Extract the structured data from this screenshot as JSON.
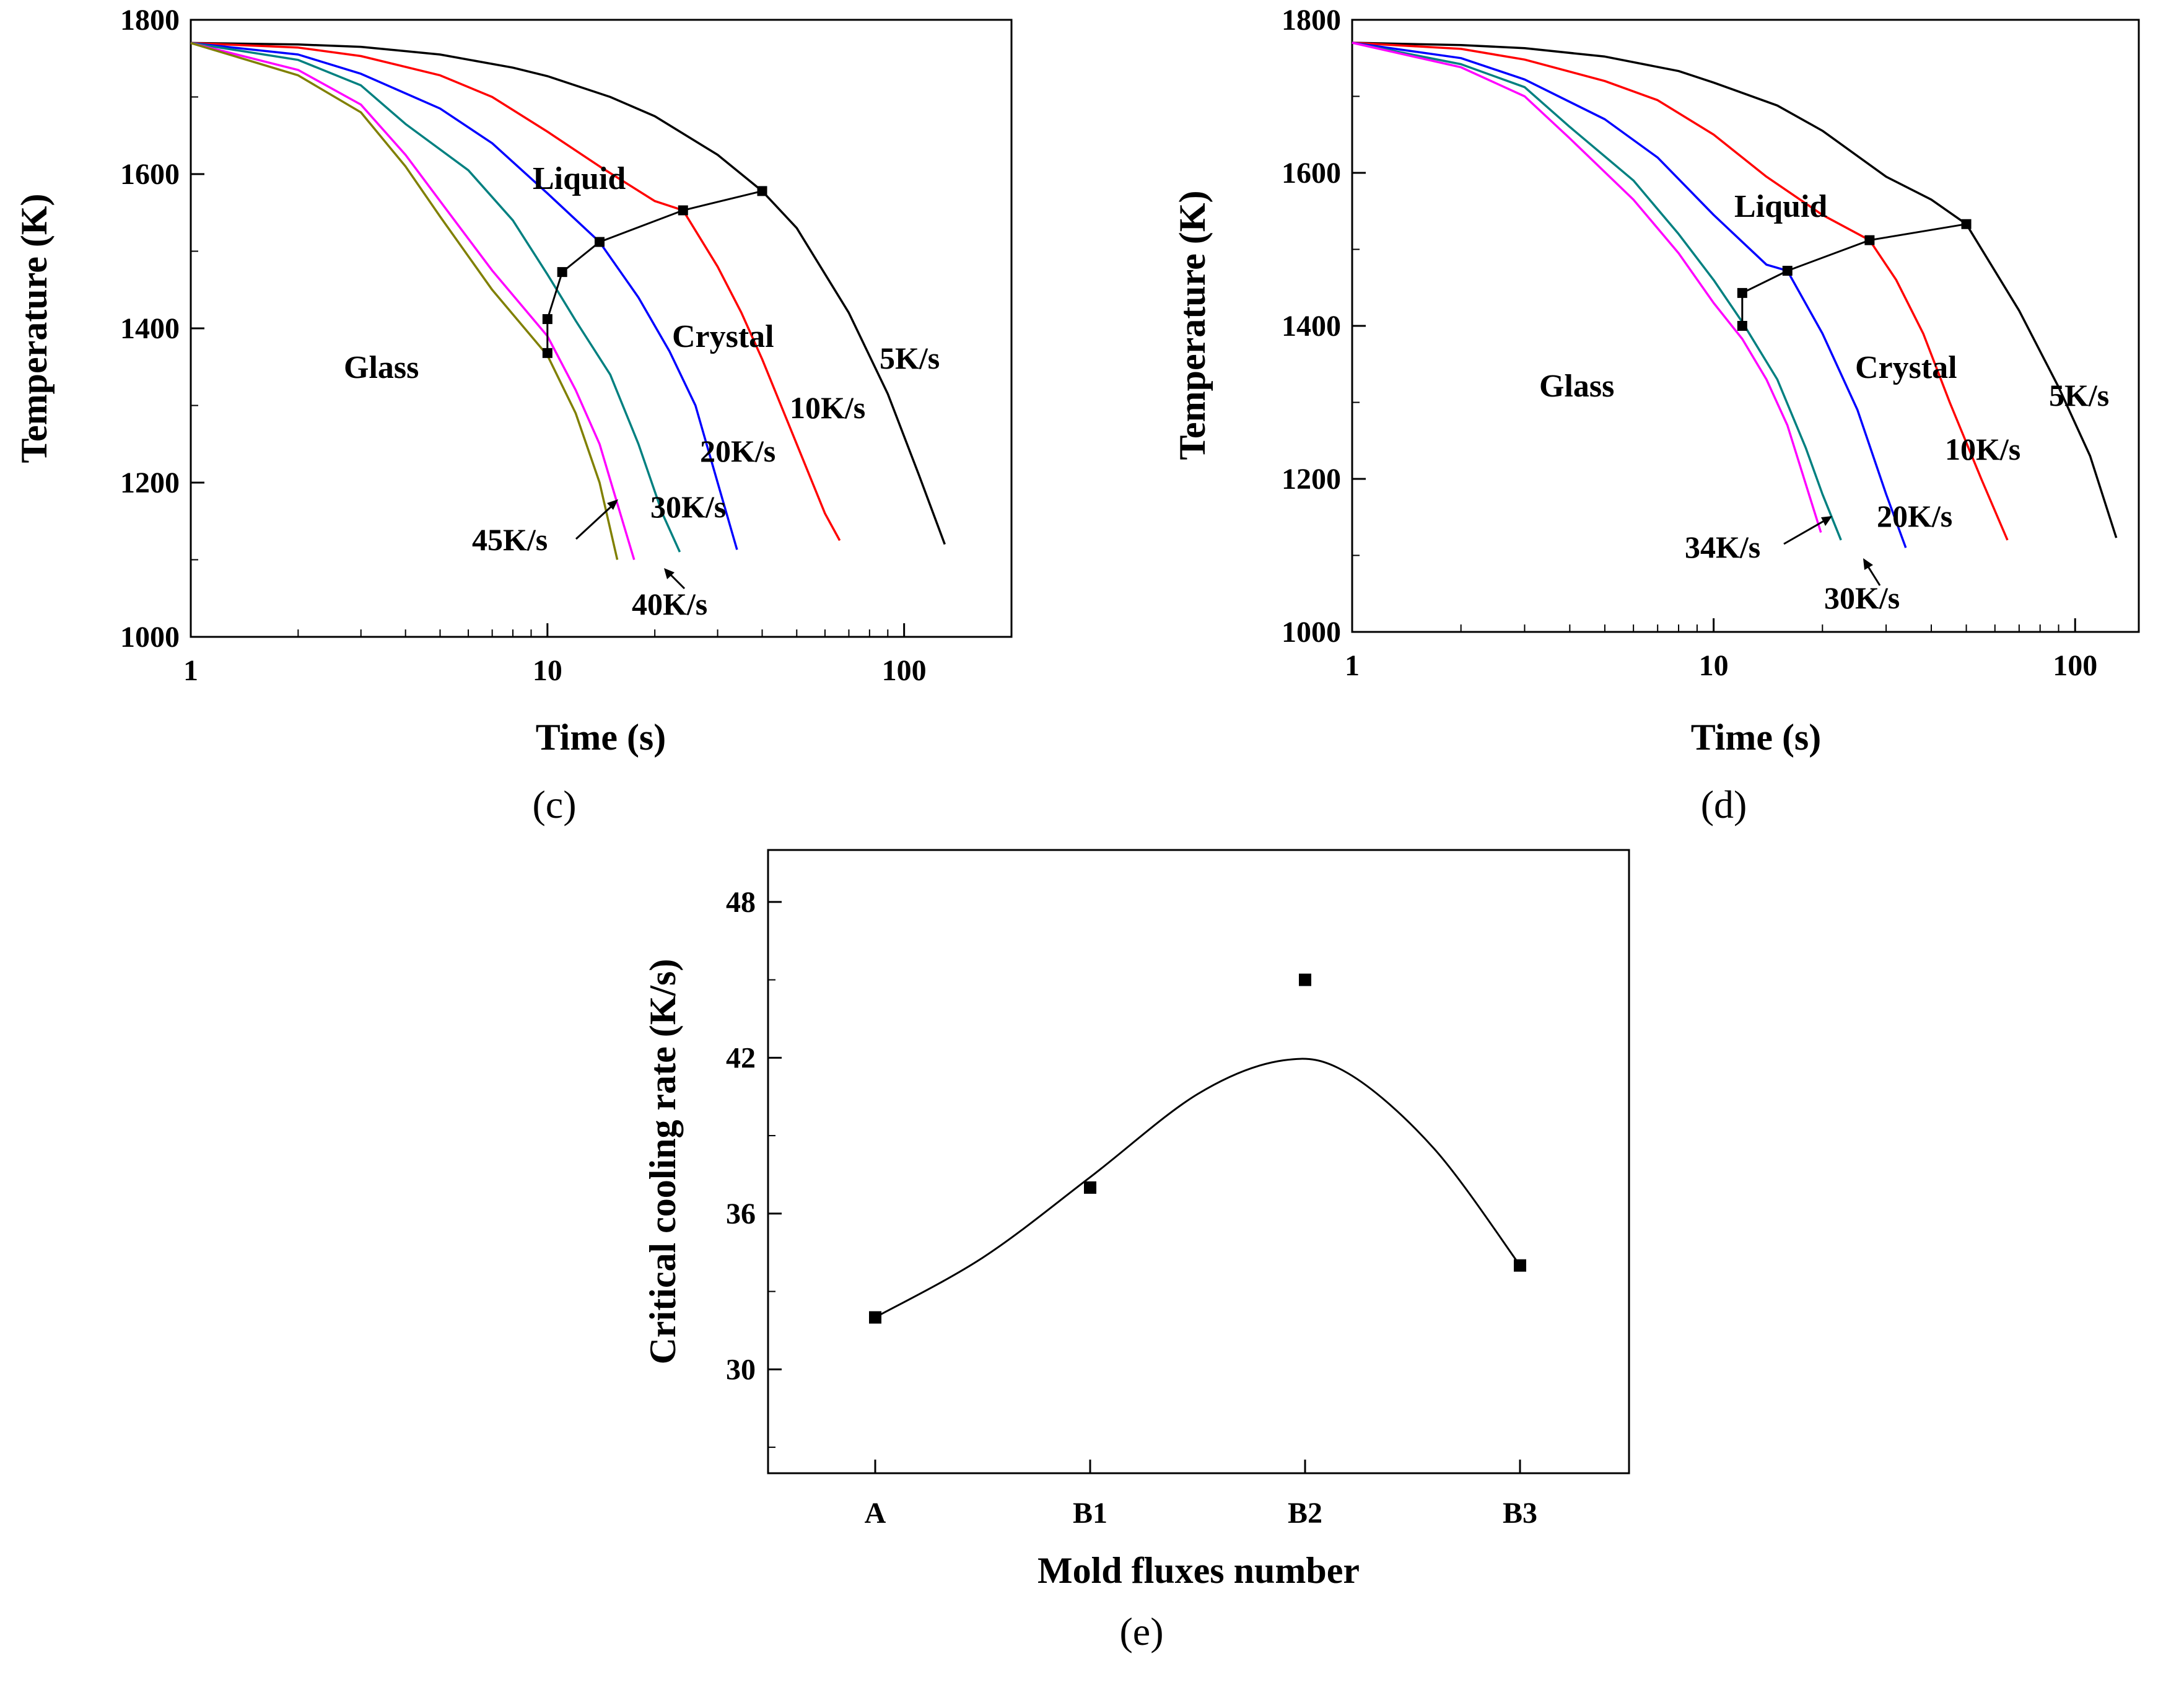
{
  "chart_data": [
    {
      "panel": "(c)",
      "type": "line",
      "xscale": "log",
      "xlabel": "Time (s)",
      "ylabel": "Temperature (K)",
      "xlim": [
        1,
        200
      ],
      "ylim": [
        1000,
        1800
      ],
      "xticks": [
        1,
        10,
        100
      ],
      "yticks": [
        1000,
        1200,
        1400,
        1600,
        1800
      ],
      "series": [
        {
          "name": "5K/s",
          "color": "#000000",
          "x": [
            1,
            2,
            3,
            5,
            8,
            10,
            15,
            20,
            30,
            40,
            50,
            70,
            90,
            110,
            130
          ],
          "y": [
            1770,
            1768,
            1765,
            1755,
            1738,
            1727,
            1700,
            1675,
            1625,
            1578,
            1530,
            1420,
            1315,
            1210,
            1120
          ]
        },
        {
          "name": "10K/s",
          "color": "#ff0000",
          "x": [
            1,
            2,
            3,
            5,
            7,
            10,
            14,
            20,
            24,
            30,
            35,
            40,
            50,
            60,
            66
          ],
          "y": [
            1770,
            1764,
            1753,
            1728,
            1700,
            1655,
            1610,
            1565,
            1553,
            1480,
            1420,
            1360,
            1250,
            1160,
            1125
          ]
        },
        {
          "name": "20K/s",
          "color": "#0000ff",
          "x": [
            1,
            2,
            3,
            5,
            7,
            10,
            14,
            18,
            22,
            26,
            30,
            34
          ],
          "y": [
            1770,
            1755,
            1730,
            1685,
            1640,
            1575,
            1512,
            1440,
            1370,
            1300,
            1200,
            1113
          ]
        },
        {
          "name": "30K/s",
          "color": "#008080",
          "x": [
            1,
            2,
            3,
            4,
            6,
            8,
            10,
            12,
            15,
            18,
            21,
            23.5
          ],
          "y": [
            1770,
            1748,
            1715,
            1665,
            1605,
            1540,
            1470,
            1410,
            1340,
            1250,
            1160,
            1110
          ]
        },
        {
          "name": "40K/s",
          "color": "#ff00ff",
          "x": [
            1,
            2,
            3,
            4,
            5,
            7,
            10,
            12,
            14,
            16,
            17.5
          ],
          "y": [
            1770,
            1735,
            1690,
            1625,
            1565,
            1475,
            1390,
            1320,
            1250,
            1160,
            1100
          ]
        },
        {
          "name": "45K/s",
          "color": "#808000",
          "x": [
            1,
            2,
            3,
            4,
            5,
            7,
            10,
            12,
            14,
            15.7
          ],
          "y": [
            1770,
            1728,
            1680,
            1610,
            1545,
            1450,
            1365,
            1290,
            1200,
            1100
          ]
        }
      ],
      "boundary": {
        "x": [
          10,
          10,
          11,
          14,
          24,
          40
        ],
        "y": [
          1368,
          1412,
          1473,
          1512,
          1553,
          1578
        ]
      },
      "annotations": {
        "liquid": "Liquid",
        "crystal": "Crystal",
        "glass": "Glass",
        "rate_labels": [
          "5K/s",
          "10K/s",
          "20K/s",
          "30K/s",
          "45K/s",
          "40K/s"
        ]
      }
    },
    {
      "panel": "(d)",
      "type": "line",
      "xscale": "log",
      "xlabel": "Time (s)",
      "ylabel": "Temperature (K)",
      "xlim": [
        1,
        150
      ],
      "ylim": [
        1000,
        1800
      ],
      "xticks": [
        1,
        10,
        100
      ],
      "yticks": [
        1000,
        1200,
        1400,
        1600,
        1800
      ],
      "series": [
        {
          "name": "5K/s",
          "color": "#000000",
          "x": [
            1,
            2,
            3,
            5,
            8,
            10,
            15,
            20,
            30,
            40,
            50,
            70,
            90,
            110,
            130
          ],
          "y": [
            1770,
            1767,
            1763,
            1752,
            1733,
            1718,
            1688,
            1655,
            1595,
            1565,
            1533,
            1420,
            1320,
            1230,
            1123
          ]
        },
        {
          "name": "10K/s",
          "color": "#ff0000",
          "x": [
            1,
            2,
            3,
            5,
            7,
            10,
            14,
            20,
            27,
            32,
            38,
            45,
            55,
            65
          ],
          "y": [
            1770,
            1762,
            1748,
            1720,
            1695,
            1650,
            1595,
            1545,
            1512,
            1460,
            1390,
            1300,
            1200,
            1120
          ]
        },
        {
          "name": "20K/s",
          "color": "#0000ff",
          "x": [
            1,
            2,
            3,
            5,
            7,
            10,
            14,
            16,
            20,
            25,
            30,
            34
          ],
          "y": [
            1770,
            1750,
            1722,
            1670,
            1620,
            1545,
            1480,
            1472,
            1390,
            1290,
            1180,
            1110
          ]
        },
        {
          "name": "30K/s",
          "color": "#008080",
          "x": [
            1,
            2,
            3,
            4,
            6,
            8,
            10,
            12,
            15,
            18,
            20,
            22.5
          ],
          "y": [
            1770,
            1742,
            1712,
            1660,
            1590,
            1520,
            1460,
            1405,
            1330,
            1240,
            1180,
            1120
          ]
        },
        {
          "name": "34K/s",
          "color": "#ff00ff",
          "x": [
            1,
            2,
            3,
            4,
            6,
            8,
            10,
            12,
            14,
            16,
            19.8
          ],
          "y": [
            1770,
            1738,
            1700,
            1645,
            1565,
            1495,
            1430,
            1383,
            1330,
            1270,
            1130
          ]
        }
      ],
      "boundary": {
        "x": [
          12,
          12,
          16,
          27,
          50
        ],
        "y": [
          1400,
          1443,
          1472,
          1512,
          1533
        ]
      },
      "annotations": {
        "liquid": "Liquid",
        "crystal": "Crystal",
        "glass": "Glass",
        "rate_labels": [
          "5K/s",
          "10K/s",
          "20K/s",
          "34K/s",
          "30K/s"
        ]
      }
    },
    {
      "panel": "(e)",
      "type": "scatter",
      "xlabel": "Mold fluxes number",
      "ylabel": "Critical cooling rate (K/s)",
      "categories": [
        "A",
        "B1",
        "B2",
        "B3"
      ],
      "values": [
        32,
        37,
        45,
        34
      ],
      "fit_curve": {
        "x": [
          0,
          0.5,
          1,
          1.5,
          1.9,
          2.2,
          2.6,
          3.0
        ],
        "y": [
          32,
          34.3,
          37.4,
          40.6,
          41.9,
          41.4,
          38.5,
          34
        ]
      },
      "ylim": [
        26,
        50
      ],
      "yticks": [
        30,
        36,
        42,
        48
      ]
    }
  ]
}
